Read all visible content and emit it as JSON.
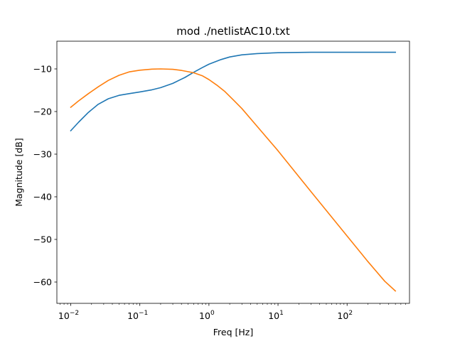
{
  "chart_data": {
    "type": "line",
    "title": "mod ./netlistAC10.txt",
    "xlabel": "Freq [Hz]",
    "ylabel": "Magnitude [dB]",
    "xscale": "log",
    "xlim": [
      0.0063,
      800
    ],
    "ylim": [
      -65,
      -3.5
    ],
    "xticks": [
      {
        "value": 0.01,
        "base": "10",
        "exp": "−2"
      },
      {
        "value": 0.1,
        "base": "10",
        "exp": "−1"
      },
      {
        "value": 1,
        "base": "10",
        "exp": "0"
      },
      {
        "value": 10,
        "base": "10",
        "exp": "1"
      },
      {
        "value": 100,
        "base": "10",
        "exp": "2"
      }
    ],
    "yticks": [
      {
        "value": -10,
        "label": "−10"
      },
      {
        "value": -20,
        "label": "−20"
      },
      {
        "value": -30,
        "label": "−30"
      },
      {
        "value": -40,
        "label": "−40"
      },
      {
        "value": -50,
        "label": "−50"
      },
      {
        "value": -60,
        "label": "−60"
      }
    ],
    "grid": false,
    "legend": "none",
    "series": [
      {
        "color": "#1f77b4",
        "points": [
          [
            0.01,
            -24.5
          ],
          [
            0.013,
            -22.5
          ],
          [
            0.018,
            -20.2
          ],
          [
            0.025,
            -18.3
          ],
          [
            0.035,
            -17.0
          ],
          [
            0.05,
            -16.2
          ],
          [
            0.07,
            -15.8
          ],
          [
            0.1,
            -15.4
          ],
          [
            0.15,
            -14.9
          ],
          [
            0.2,
            -14.4
          ],
          [
            0.3,
            -13.4
          ],
          [
            0.45,
            -12.0
          ],
          [
            0.6,
            -10.8
          ],
          [
            0.8,
            -9.7
          ],
          [
            1.0,
            -8.9
          ],
          [
            1.5,
            -7.8
          ],
          [
            2.0,
            -7.2
          ],
          [
            3.0,
            -6.7
          ],
          [
            5.0,
            -6.4
          ],
          [
            10,
            -6.2
          ],
          [
            30,
            -6.1
          ],
          [
            100,
            -6.1
          ],
          [
            500,
            -6.1
          ]
        ]
      },
      {
        "color": "#ff7f0e",
        "points": [
          [
            0.01,
            -19.0
          ],
          [
            0.013,
            -17.5
          ],
          [
            0.018,
            -15.8
          ],
          [
            0.025,
            -14.2
          ],
          [
            0.035,
            -12.7
          ],
          [
            0.05,
            -11.5
          ],
          [
            0.07,
            -10.7
          ],
          [
            0.1,
            -10.3
          ],
          [
            0.15,
            -10.05
          ],
          [
            0.2,
            -10.0
          ],
          [
            0.3,
            -10.1
          ],
          [
            0.4,
            -10.35
          ],
          [
            0.6,
            -10.9
          ],
          [
            0.8,
            -11.6
          ],
          [
            1.0,
            -12.5
          ],
          [
            1.3,
            -13.8
          ],
          [
            1.7,
            -15.3
          ],
          [
            2.3,
            -17.4
          ],
          [
            3.0,
            -19.3
          ],
          [
            5.0,
            -23.5
          ],
          [
            10,
            -29.2
          ],
          [
            30,
            -38.8
          ],
          [
            100,
            -49.2
          ],
          [
            200,
            -55.2
          ],
          [
            350,
            -59.8
          ],
          [
            500,
            -62.1
          ]
        ]
      }
    ]
  }
}
